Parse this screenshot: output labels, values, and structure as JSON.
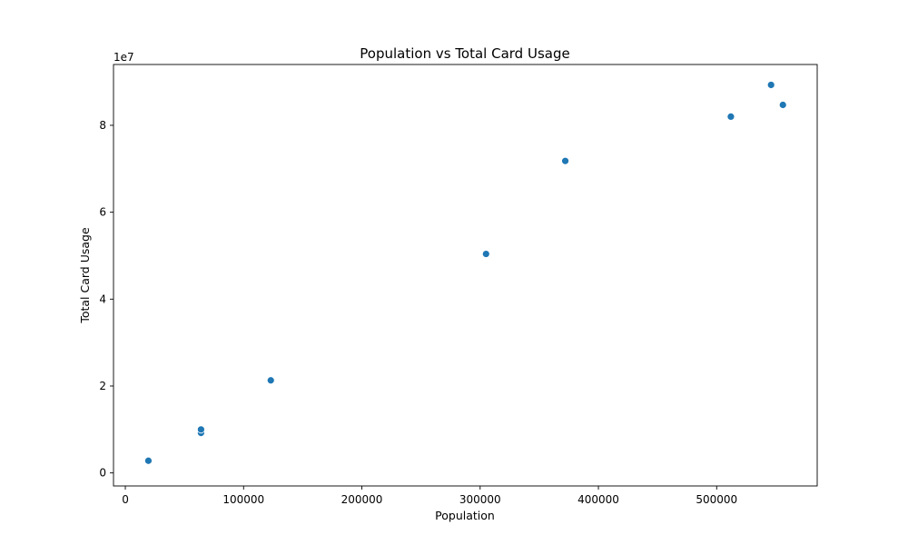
{
  "chart_data": {
    "type": "scatter",
    "title": "Population vs Total Card Usage",
    "xlabel": "Population",
    "ylabel": "Total Card Usage",
    "y_offset_label": "1e7",
    "y_scale_factor": 10000000,
    "xlim": [
      -10000,
      585000
    ],
    "ylim": [
      -0.3,
      9.4
    ],
    "x_ticks": [
      0,
      100000,
      200000,
      300000,
      400000,
      500000
    ],
    "x_tick_labels": [
      "0",
      "100000",
      "200000",
      "300000",
      "400000",
      "500000"
    ],
    "y_ticks": [
      0,
      2,
      4,
      6,
      8
    ],
    "y_tick_labels": [
      "0",
      "2",
      "4",
      "6",
      "8"
    ],
    "grid": false,
    "marker_color": "#1f77b4",
    "marker_edge_color": "#ffffff",
    "x": [
      19500,
      64000,
      64000,
      123000,
      305000,
      372000,
      512000,
      546000,
      556000
    ],
    "y": [
      0.28,
      0.92,
      1.0,
      2.13,
      5.04,
      7.18,
      8.2,
      8.93,
      8.47
    ]
  }
}
